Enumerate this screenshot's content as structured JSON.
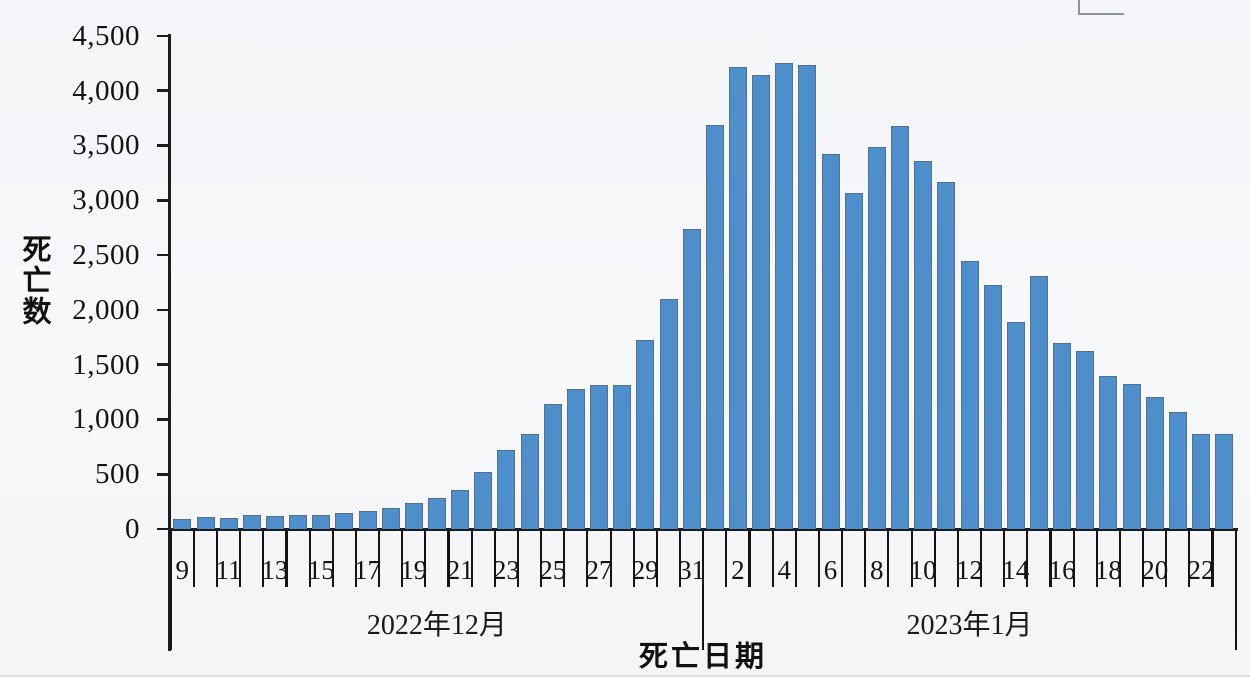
{
  "chart_data": {
    "type": "bar",
    "title": "",
    "ylabel": "死亡数",
    "xlabel": "死亡日期",
    "ylim": [
      0,
      4500
    ],
    "y_tick_interval": 500,
    "y_tick_labels": [
      "0",
      "500",
      "1,000",
      "1,500",
      "2,000",
      "2,500",
      "3,000",
      "3,500",
      "4,000",
      "4,500"
    ],
    "grid": false,
    "legend": "none",
    "bar_color": "#4E8FCB",
    "bar_border_color": "#55708C",
    "categories": [
      "2022-12-09",
      "2022-12-10",
      "2022-12-11",
      "2022-12-12",
      "2022-12-13",
      "2022-12-14",
      "2022-12-15",
      "2022-12-16",
      "2022-12-17",
      "2022-12-18",
      "2022-12-19",
      "2022-12-20",
      "2022-12-21",
      "2022-12-22",
      "2022-12-23",
      "2022-12-24",
      "2022-12-25",
      "2022-12-26",
      "2022-12-27",
      "2022-12-28",
      "2022-12-29",
      "2022-12-30",
      "2022-12-31",
      "2023-01-01",
      "2023-01-02",
      "2023-01-03",
      "2023-01-04",
      "2023-01-05",
      "2023-01-06",
      "2023-01-07",
      "2023-01-08",
      "2023-01-09",
      "2023-01-10",
      "2023-01-11",
      "2023-01-12",
      "2023-01-13",
      "2023-01-14",
      "2023-01-15",
      "2023-01-16",
      "2023-01-17",
      "2023-01-18",
      "2023-01-19",
      "2023-01-20",
      "2023-01-21",
      "2023-01-22",
      "2023-01-23"
    ],
    "values": [
      95,
      110,
      105,
      125,
      120,
      125,
      130,
      150,
      165,
      195,
      235,
      280,
      355,
      525,
      720,
      870,
      1140,
      1275,
      1310,
      1310,
      1725,
      2100,
      2735,
      3690,
      4215,
      4140,
      4255,
      4230,
      3425,
      3065,
      3485,
      3675,
      3355,
      3165,
      2450,
      2230,
      1890,
      2310,
      1700,
      1625,
      1400,
      1320,
      1205,
      1065,
      870,
      870
    ],
    "x_groups": [
      {
        "label": "2022年12月",
        "start": 0,
        "end": 22
      },
      {
        "label": "2023年1月",
        "start": 23,
        "end": 45
      }
    ],
    "x_day_labels": [
      {
        "text": "9",
        "slot": 0
      },
      {
        "text": "11",
        "slot": 2
      },
      {
        "text": "13",
        "slot": 4
      },
      {
        "text": "15",
        "slot": 6
      },
      {
        "text": "17",
        "slot": 8
      },
      {
        "text": "19",
        "slot": 10
      },
      {
        "text": "21",
        "slot": 12
      },
      {
        "text": "23",
        "slot": 14
      },
      {
        "text": "25",
        "slot": 16
      },
      {
        "text": "27",
        "slot": 18
      },
      {
        "text": "29",
        "slot": 20
      },
      {
        "text": "31",
        "slot": 22
      },
      {
        "text": "2",
        "slot": 24
      },
      {
        "text": "4",
        "slot": 26
      },
      {
        "text": "6",
        "slot": 28
      },
      {
        "text": "8",
        "slot": 30
      },
      {
        "text": "10",
        "slot": 32
      },
      {
        "text": "12",
        "slot": 34
      },
      {
        "text": "14",
        "slot": 36
      },
      {
        "text": "16",
        "slot": 38
      },
      {
        "text": "18",
        "slot": 40
      },
      {
        "text": "20",
        "slot": 42
      },
      {
        "text": "22",
        "slot": 44
      }
    ]
  }
}
